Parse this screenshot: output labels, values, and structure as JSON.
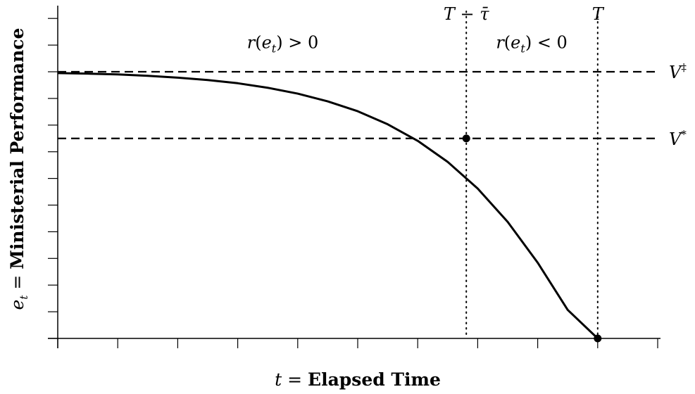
{
  "chart_data": {
    "type": "line",
    "title": "",
    "xlabel": {
      "var": "t",
      "eq": " = ",
      "text": "Elapsed Time"
    },
    "ylabel": {
      "var": "e",
      "sub": "t",
      "eq": " = ",
      "text": "Ministerial Performance"
    },
    "xlim": [
      0,
      1
    ],
    "ylim": [
      0,
      1
    ],
    "grid": false,
    "x_ticks": 11,
    "y_ticks": 13,
    "series": [
      {
        "x": [
          0.0,
          0.05,
          0.1,
          0.15,
          0.2,
          0.25,
          0.3,
          0.35,
          0.4,
          0.45,
          0.5,
          0.55,
          0.6,
          0.65,
          0.7,
          0.75,
          0.8,
          0.85,
          0.9
        ],
        "y": [
          0.995,
          0.993,
          0.99,
          0.985,
          0.978,
          0.969,
          0.957,
          0.94,
          0.918,
          0.889,
          0.852,
          0.803,
          0.741,
          0.662,
          0.562,
          0.437,
          0.284,
          0.107,
          0.0
        ]
      }
    ],
    "points": [
      {
        "x": 0.681,
        "y": 0.75
      },
      {
        "x": 0.9,
        "y": 0.0
      }
    ],
    "hlines": [
      {
        "y": 1.0,
        "label": "V",
        "sup": "‡"
      },
      {
        "y": 0.75,
        "label": "V",
        "sup": "*"
      }
    ],
    "vlines": [
      {
        "x": 0.681,
        "label_main": "T",
        "label_op": " − ",
        "label_var": "τ̄"
      },
      {
        "x": 0.9,
        "label_main": "T",
        "label_op": "",
        "label_var": ""
      }
    ],
    "annotations": [
      {
        "x": 0.375,
        "y": 1.11,
        "func": "r",
        "arg": "e",
        "sub": "t",
        "rel": " > 0"
      },
      {
        "x": 0.79,
        "y": 1.11,
        "func": "r",
        "arg": "e",
        "sub": "t",
        "rel": " < 0"
      }
    ]
  }
}
